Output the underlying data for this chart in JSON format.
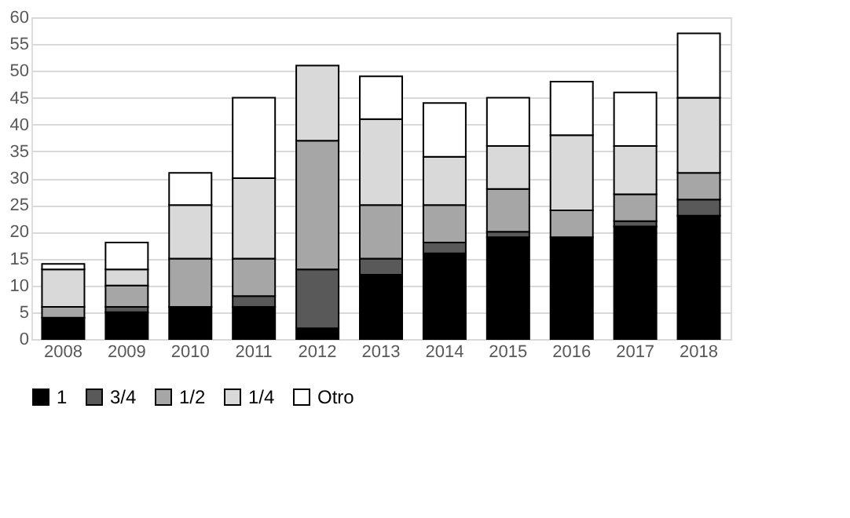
{
  "chart_data": {
    "type": "bar",
    "stacked": true,
    "categories": [
      "2008",
      "2009",
      "2010",
      "2011",
      "2012",
      "2013",
      "2014",
      "2015",
      "2016",
      "2017",
      "2018"
    ],
    "series": [
      {
        "name": "1",
        "color": "#000000",
        "values": [
          4,
          5,
          6,
          6,
          2,
          12,
          16,
          19,
          19,
          21,
          23
        ]
      },
      {
        "name": "3/4",
        "color": "#595959",
        "values": [
          null,
          1,
          null,
          2,
          11,
          3,
          2,
          1,
          null,
          1,
          3
        ]
      },
      {
        "name": "1/2",
        "color": "#a6a6a6",
        "values": [
          2,
          4,
          9,
          7,
          24,
          10,
          7,
          8,
          5,
          5,
          5
        ]
      },
      {
        "name": "1/4",
        "color": "#d9d9d9",
        "values": [
          7,
          3,
          10,
          15,
          14,
          16,
          9,
          8,
          14,
          9,
          14
        ]
      },
      {
        "name": "Otro",
        "color": "#ffffff",
        "values": [
          1,
          5,
          6,
          15,
          null,
          8,
          10,
          9,
          10,
          10,
          12
        ]
      }
    ],
    "ylim": [
      0,
      60
    ],
    "yticks": [
      0,
      5,
      10,
      15,
      20,
      25,
      30,
      35,
      40,
      45,
      50,
      55,
      60
    ],
    "grid": "y",
    "legend": "bottom"
  }
}
